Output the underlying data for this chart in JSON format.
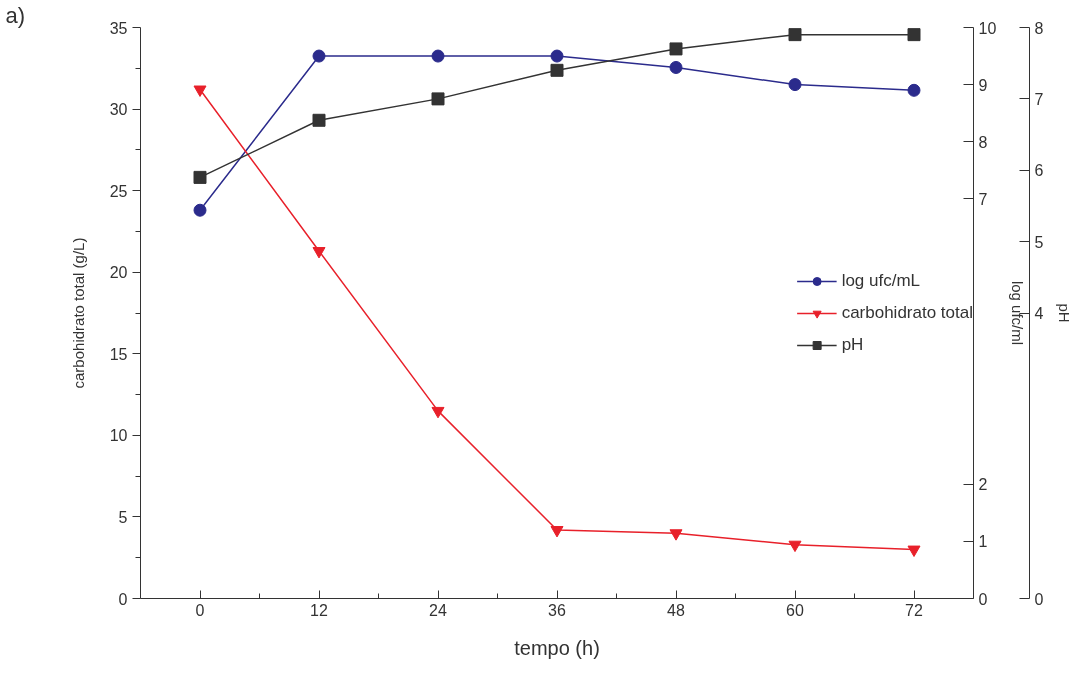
{
  "chart_data": {
    "type": "line",
    "annotations": [
      "a)"
    ],
    "xlabel": "tempo (h)",
    "ylabel": "carbohidrato total (g/L)",
    "y2label": "log ufc/ml",
    "y3label": "pH",
    "x": [
      0,
      12,
      24,
      36,
      48,
      60,
      72
    ],
    "xlim": [
      -6,
      78
    ],
    "xticks": [
      0,
      12,
      24,
      36,
      48,
      60,
      72
    ],
    "ylim": [
      0,
      35
    ],
    "yticks": [
      0,
      5,
      10,
      15,
      20,
      25,
      30,
      35
    ],
    "y2lim": [
      0,
      10
    ],
    "y2ticks": [
      0,
      1,
      2,
      7,
      8,
      9,
      10
    ],
    "y3lim": [
      0,
      8
    ],
    "y3ticks": [
      0,
      4,
      5,
      6,
      7,
      8
    ],
    "grid": false,
    "legend": "right",
    "line_style": "solid",
    "series": [
      {
        "name": "log ufc/mL",
        "color": "#2b2b8c",
        "marker": "circle",
        "axis": "y2",
        "values": [
          6.8,
          9.5,
          9.5,
          9.5,
          9.3,
          9.0,
          8.9
        ]
      },
      {
        "name": "carbohidrato total",
        "color": "#e8202a",
        "marker": "triangle",
        "values": [
          31.2,
          21.3,
          11.5,
          4.2,
          4.0,
          3.3,
          3.0
        ]
      },
      {
        "name": "pH",
        "color": "#333333",
        "marker": "square",
        "axis": "y3",
        "values": [
          5.9,
          6.7,
          7.0,
          7.4,
          7.7,
          7.9,
          7.9
        ]
      }
    ]
  }
}
